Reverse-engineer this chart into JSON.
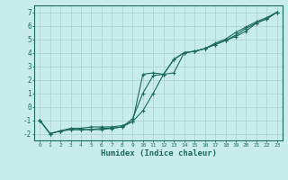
{
  "xlabel": "Humidex (Indice chaleur)",
  "bg_color": "#c8ecec",
  "grid_color": "#b0d4d4",
  "line_color": "#1a6b5a",
  "xlim": [
    -0.5,
    23.5
  ],
  "ylim": [
    -2.5,
    7.5
  ],
  "xticks": [
    0,
    1,
    2,
    3,
    4,
    5,
    6,
    7,
    8,
    9,
    10,
    11,
    12,
    13,
    14,
    15,
    16,
    17,
    18,
    19,
    20,
    21,
    22,
    23
  ],
  "yticks": [
    -2,
    -1,
    0,
    1,
    2,
    3,
    4,
    5,
    6,
    7
  ],
  "line1_x": [
    0,
    1,
    2,
    3,
    4,
    5,
    6,
    7,
    8,
    9,
    10,
    11,
    12,
    13,
    14,
    15,
    16,
    17,
    18,
    19,
    20,
    21,
    22,
    23
  ],
  "line1_y": [
    -1.0,
    -2.0,
    -1.8,
    -1.7,
    -1.7,
    -1.7,
    -1.6,
    -1.6,
    -1.5,
    -1.1,
    -0.3,
    1.0,
    2.4,
    3.5,
    4.0,
    4.1,
    4.3,
    4.6,
    4.9,
    5.3,
    5.8,
    6.2,
    6.5,
    7.0
  ],
  "line2_x": [
    0,
    1,
    2,
    3,
    4,
    5,
    6,
    7,
    8,
    9,
    10,
    11,
    12,
    13,
    14,
    15,
    16,
    17,
    18,
    19,
    20,
    21,
    22,
    23
  ],
  "line2_y": [
    -1.0,
    -2.0,
    -1.8,
    -1.6,
    -1.6,
    -1.5,
    -1.5,
    -1.5,
    -1.4,
    -1.1,
    2.4,
    2.5,
    2.4,
    2.5,
    4.0,
    4.1,
    4.3,
    4.7,
    5.0,
    5.5,
    5.9,
    6.3,
    6.6,
    7.0
  ],
  "line3_x": [
    0,
    1,
    2,
    3,
    4,
    5,
    6,
    7,
    8,
    9,
    10,
    11,
    12,
    13,
    14,
    15,
    16,
    17,
    18,
    19,
    20,
    21,
    22,
    23
  ],
  "line3_y": [
    -1.0,
    -2.0,
    -1.8,
    -1.7,
    -1.7,
    -1.7,
    -1.7,
    -1.6,
    -1.5,
    -0.9,
    1.0,
    2.3,
    2.4,
    3.5,
    4.0,
    4.1,
    4.3,
    4.6,
    4.9,
    5.2,
    5.6,
    6.2,
    6.5,
    7.0
  ]
}
